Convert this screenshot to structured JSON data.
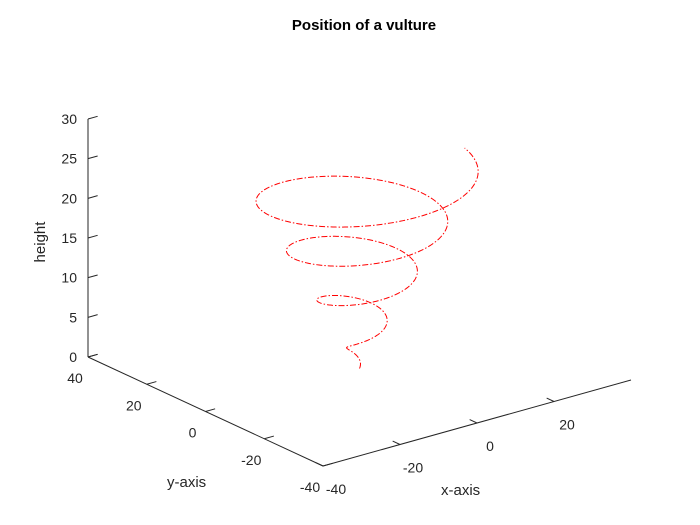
{
  "chart_data": {
    "type": "line3d",
    "title": "Position of a vulture",
    "xlabel": "x-axis",
    "ylabel": "y-axis",
    "zlabel": "height",
    "xlim": [
      -40,
      40
    ],
    "ylim": [
      -40,
      40
    ],
    "zlim": [
      0,
      30
    ],
    "xticks": [
      -40,
      -20,
      0,
      20
    ],
    "yticks": [
      -40,
      -20,
      0,
      20,
      40
    ],
    "zticks": [
      0,
      5,
      10,
      15,
      20,
      25,
      30
    ],
    "grid": false,
    "series": [
      {
        "style": "dash-dot",
        "color": "#ff0000",
        "equation": "x = t*cos(t), y = t*sin(t), z = t",
        "t_range": [
          0,
          25
        ]
      }
    ]
  }
}
